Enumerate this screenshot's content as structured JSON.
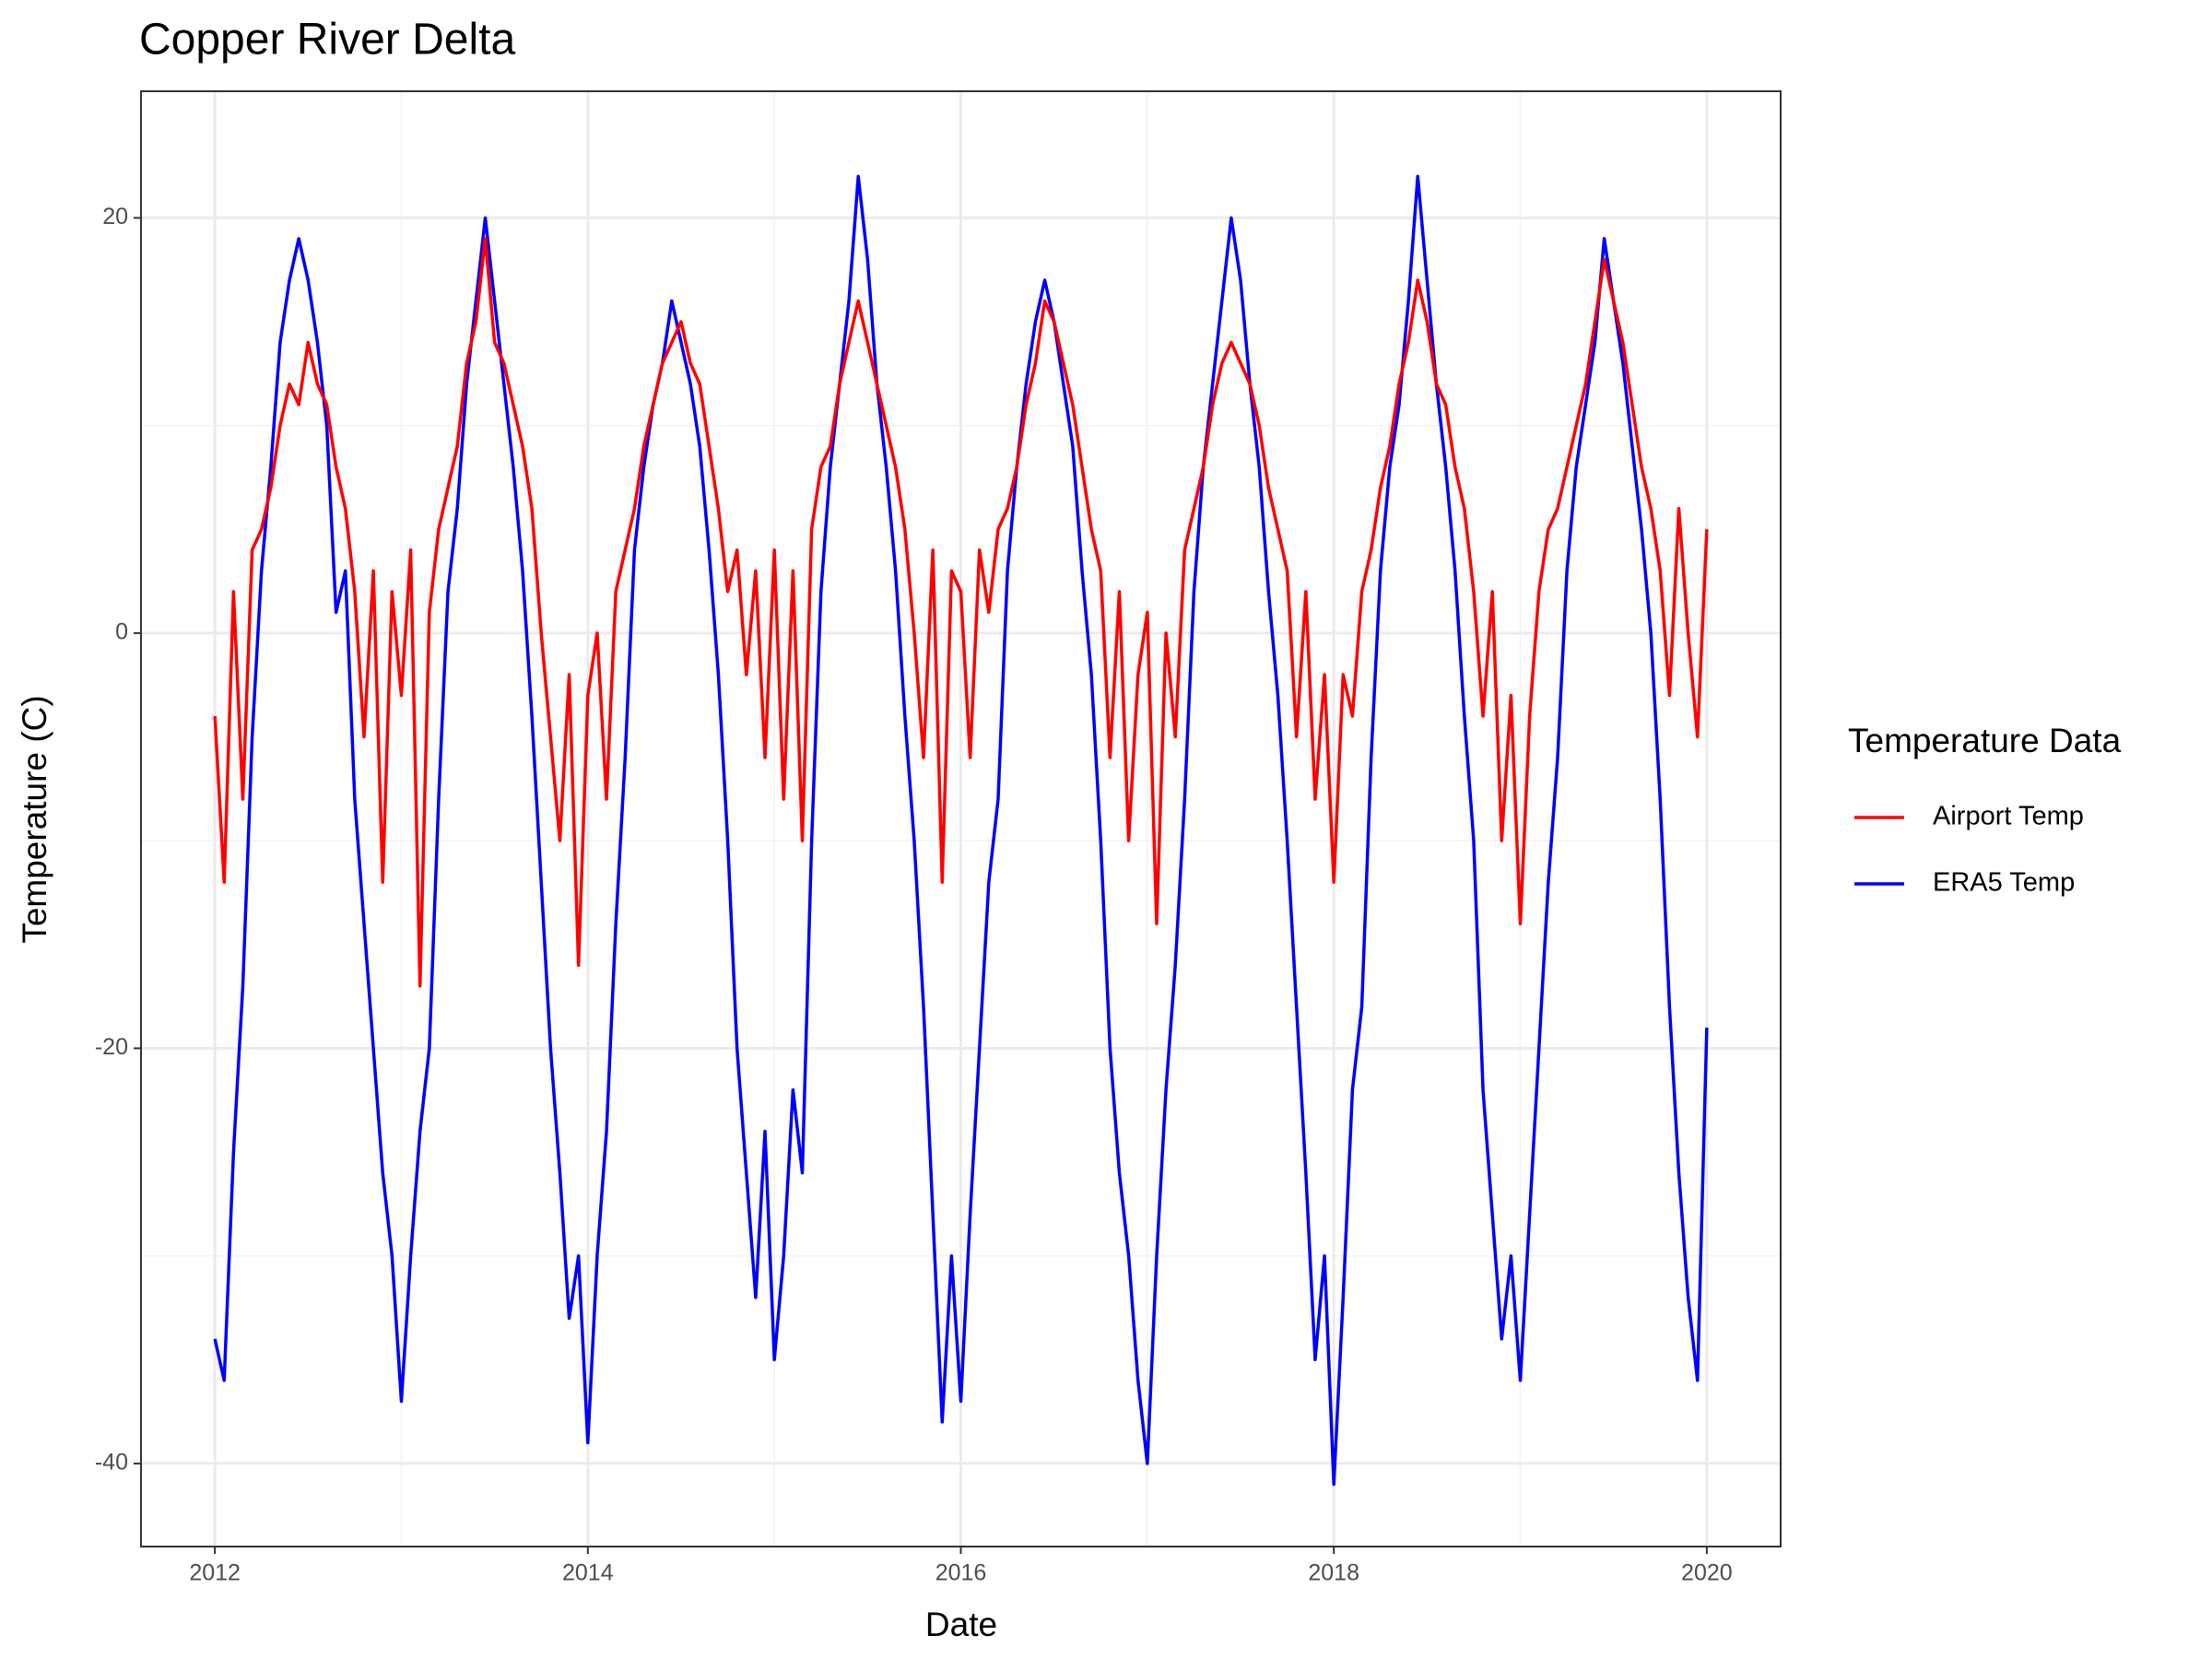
{
  "chart_data": {
    "type": "line",
    "title": "Copper River Delta",
    "x_label": "Date",
    "y_label": "Temperature (C)",
    "legend_title": "Temperature Data",
    "legend_position": "right",
    "xlim": [
      2011.604,
      2020.396
    ],
    "xticks": [
      2012,
      2014,
      2016,
      2018,
      2020
    ],
    "xminor": [
      2013,
      2015,
      2017,
      2019
    ],
    "ylim": [
      -44,
      26.1
    ],
    "yticks": [
      -40,
      -20,
      0,
      20
    ],
    "yminor": [
      -30,
      -10,
      10
    ],
    "grid": true,
    "x": [
      2012,
      2012.05,
      2012.1,
      2012.15,
      2012.2,
      2012.25,
      2012.3,
      2012.35,
      2012.4,
      2012.45,
      2012.5,
      2012.55,
      2012.6,
      2012.65,
      2012.7,
      2012.75,
      2012.8,
      2012.85,
      2012.9,
      2012.95,
      2013,
      2013.05,
      2013.1,
      2013.15,
      2013.2,
      2013.25,
      2013.3,
      2013.35,
      2013.4,
      2013.45,
      2013.5,
      2013.55,
      2013.6,
      2013.65,
      2013.7,
      2013.75,
      2013.8,
      2013.85,
      2013.9,
      2013.95,
      2014,
      2014.05,
      2014.1,
      2014.15,
      2014.2,
      2014.25,
      2014.3,
      2014.35,
      2014.4,
      2014.45,
      2014.5,
      2014.55,
      2014.6,
      2014.65,
      2014.7,
      2014.75,
      2014.8,
      2014.85,
      2014.9,
      2014.95,
      2015,
      2015.05,
      2015.1,
      2015.15,
      2015.2,
      2015.25,
      2015.3,
      2015.35,
      2015.4,
      2015.45,
      2015.5,
      2015.55,
      2015.6,
      2015.65,
      2015.7,
      2015.75,
      2015.8,
      2015.85,
      2015.9,
      2015.95,
      2016,
      2016.05,
      2016.1,
      2016.15,
      2016.2,
      2016.25,
      2016.3,
      2016.35,
      2016.4,
      2016.45,
      2016.5,
      2016.55,
      2016.6,
      2016.65,
      2016.7,
      2016.75,
      2016.8,
      2016.85,
      2016.9,
      2016.95,
      2017,
      2017.05,
      2017.1,
      2017.15,
      2017.2,
      2017.25,
      2017.3,
      2017.35,
      2017.4,
      2017.45,
      2017.5,
      2017.55,
      2017.6,
      2017.65,
      2017.7,
      2017.75,
      2017.8,
      2017.85,
      2017.9,
      2017.95,
      2018,
      2018.05,
      2018.1,
      2018.15,
      2018.2,
      2018.25,
      2018.3,
      2018.35,
      2018.4,
      2018.45,
      2018.5,
      2018.55,
      2018.6,
      2018.65,
      2018.7,
      2018.75,
      2018.8,
      2018.85,
      2018.9,
      2018.95,
      2019,
      2019.05,
      2019.1,
      2019.15,
      2019.2,
      2019.25,
      2019.3,
      2019.35,
      2019.4,
      2019.45,
      2019.5,
      2019.55,
      2019.6,
      2019.65,
      2019.7,
      2019.75,
      2019.8,
      2019.85,
      2019.9,
      2019.95,
      2020
    ],
    "series": [
      {
        "name": "Airport Temp",
        "color": "#ff0000",
        "values": [
          -4,
          -12,
          2,
          -8,
          4,
          5,
          7,
          10,
          12,
          11,
          14,
          12,
          11,
          8,
          6,
          2,
          -5,
          3,
          -12,
          2,
          -3,
          4,
          -17,
          1,
          5,
          7,
          9,
          13,
          15,
          19,
          14,
          13,
          11,
          9,
          6,
          0,
          -5,
          -10,
          -2,
          -16,
          -3,
          0,
          -8,
          2,
          4,
          6,
          9,
          11,
          13,
          14,
          15,
          13,
          12,
          9,
          6,
          2,
          4,
          -2,
          3,
          -6,
          4,
          -8,
          3,
          -10,
          5,
          8,
          9,
          12,
          14,
          16,
          14,
          12,
          10,
          8,
          5,
          0,
          -6,
          4,
          -12,
          3,
          2,
          -6,
          4,
          1,
          5,
          6,
          8,
          11,
          13,
          16,
          15,
          13,
          11,
          8,
          5,
          3,
          -6,
          2,
          -10,
          -2,
          1,
          -14,
          0,
          -5,
          4,
          6,
          8,
          11,
          13,
          14,
          13,
          12,
          10,
          7,
          5,
          3,
          -5,
          2,
          -8,
          -2,
          -12,
          -2,
          -4,
          2,
          4,
          7,
          9,
          12,
          14,
          17,
          15,
          12,
          11,
          8,
          6,
          2,
          -4,
          2,
          -10,
          -3,
          -14,
          -4,
          2,
          5,
          6,
          8,
          10,
          12,
          15,
          18,
          16,
          14,
          11,
          8,
          6,
          3,
          -3,
          6,
          0,
          -5,
          5
        ]
      },
      {
        "name": "ERA5 Temp",
        "color": "#0000ff",
        "values": [
          -34,
          -36,
          -25,
          -17,
          -5,
          3,
          8,
          14,
          17,
          19,
          17,
          14,
          10,
          1,
          3,
          -8,
          -14,
          -20,
          -26,
          -30,
          -37,
          -30,
          -24,
          -20,
          -8,
          2,
          6,
          12,
          16,
          20,
          16,
          12,
          8,
          3,
          -4,
          -12,
          -20,
          -26,
          -33,
          -30,
          -39,
          -30,
          -24,
          -14,
          -6,
          4,
          8,
          11,
          13,
          16,
          14,
          12,
          9,
          4,
          -2,
          -10,
          -20,
          -26,
          -32,
          -24,
          -35,
          -30,
          -22,
          -26,
          -10,
          2,
          8,
          12,
          16,
          22,
          18,
          12,
          8,
          3,
          -4,
          -10,
          -18,
          -28,
          -38,
          -30,
          -37,
          -28,
          -20,
          -12,
          -8,
          3,
          8,
          12,
          15,
          17,
          15,
          12,
          9,
          3,
          -2,
          -10,
          -20,
          -26,
          -30,
          -36,
          -40,
          -30,
          -22,
          -16,
          -8,
          2,
          8,
          12,
          16,
          20,
          17,
          12,
          8,
          2,
          -3,
          -10,
          -18,
          -26,
          -35,
          -30,
          -41,
          -32,
          -22,
          -18,
          -6,
          3,
          8,
          11,
          16,
          22,
          17,
          12,
          8,
          3,
          -4,
          -10,
          -22,
          -28,
          -34,
          -30,
          -36,
          -28,
          -20,
          -12,
          -6,
          3,
          8,
          11,
          14,
          19,
          16,
          13,
          9,
          5,
          0,
          -8,
          -18,
          -26,
          -32,
          -36,
          -19
        ]
      }
    ]
  }
}
